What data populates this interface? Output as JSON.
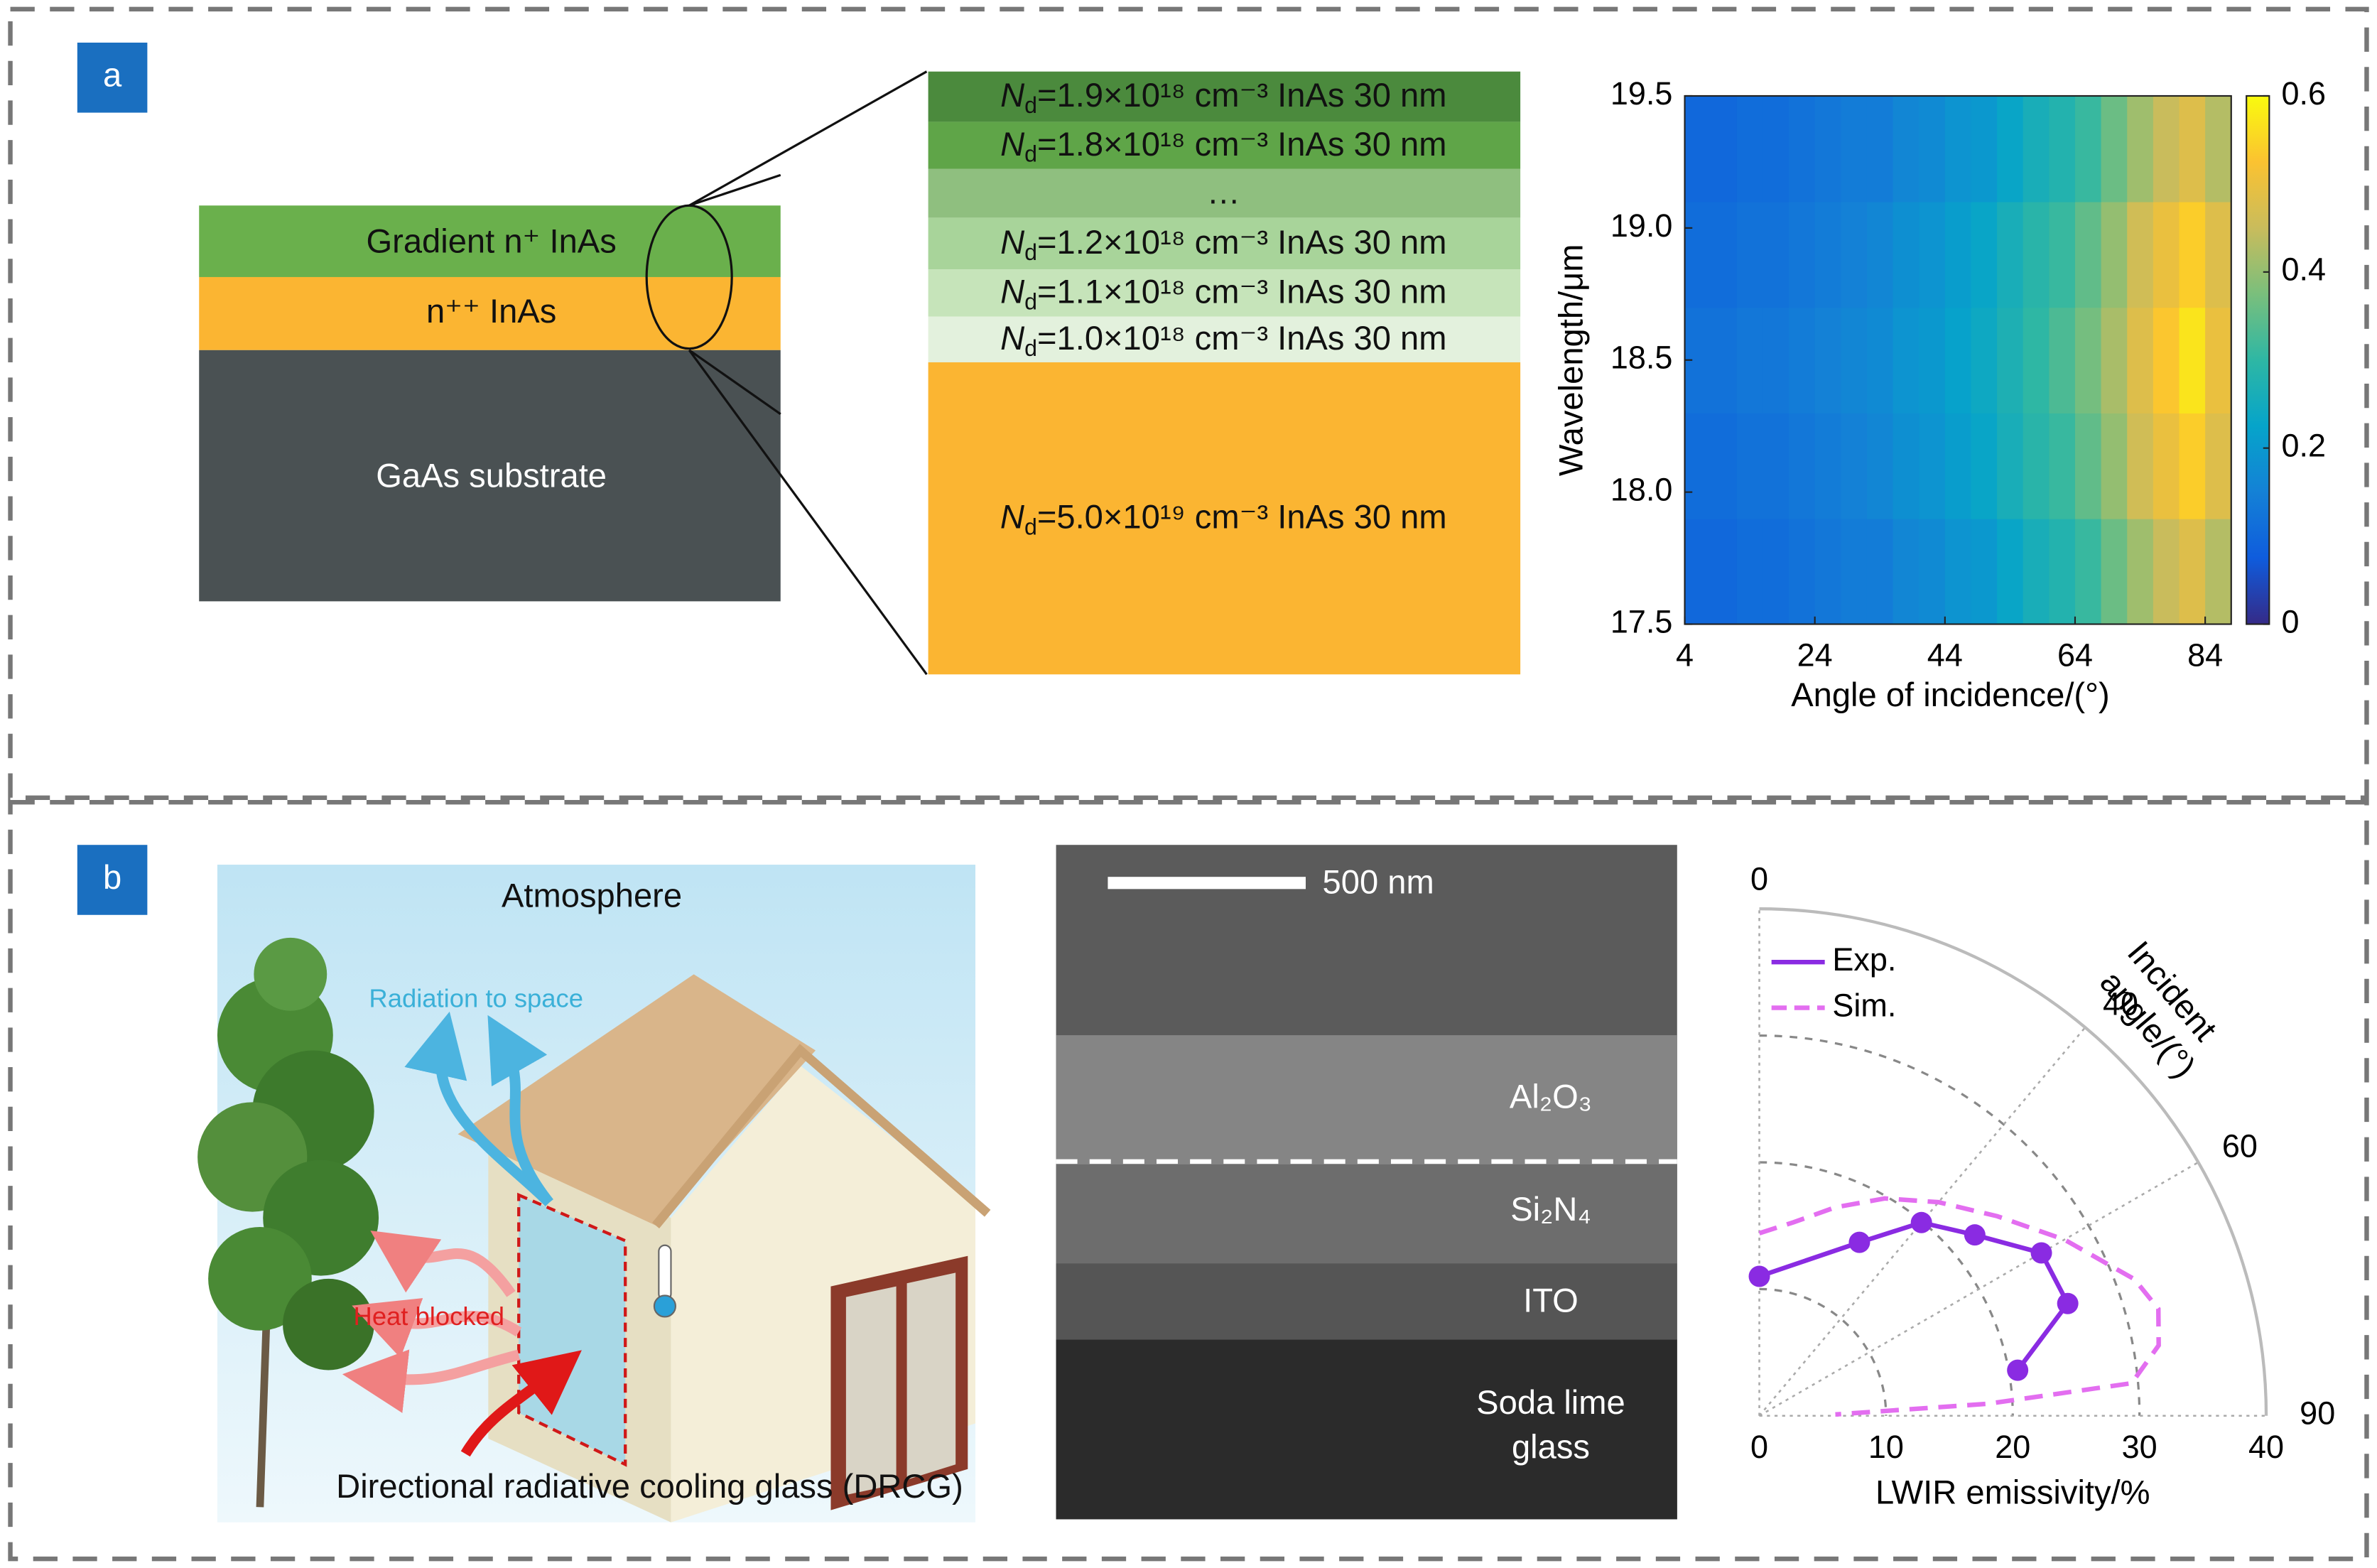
{
  "panel_a": {
    "label": "a",
    "structure": [
      "Gradient n⁺ InAs",
      "n⁺⁺ InAs",
      "GaAs substrate"
    ],
    "zoom_layers": [
      {
        "symbol": "N",
        "subscript": "d",
        "text": "=1.9×10¹⁸ cm⁻³ InAs 30 nm",
        "color": "#4b8a3d"
      },
      {
        "symbol": "N",
        "subscript": "d",
        "text": "=1.8×10¹⁸ cm⁻³ InAs 30 nm",
        "color": "#5fa548"
      },
      {
        "text": "…",
        "color": "#8fbf7f"
      },
      {
        "symbol": "N",
        "subscript": "d",
        "text": "=1.2×10¹⁸ cm⁻³ InAs 30 nm",
        "color": "#a8d49a"
      },
      {
        "symbol": "N",
        "subscript": "d",
        "text": "=1.1×10¹⁸ cm⁻³ InAs 30 nm",
        "color": "#c6e4ba"
      },
      {
        "symbol": "N",
        "subscript": "d",
        "text": "=1.0×10¹⁸ cm⁻³ InAs 30 nm",
        "color": "#e3f1dd"
      },
      {
        "symbol": "N",
        "subscript": "d",
        "text": "=5.0×10¹⁹ cm⁻³ InAs 30 nm",
        "color": "#fbb532"
      }
    ]
  },
  "panel_b": {
    "label": "b",
    "illustration": {
      "atmosphere": "Atmosphere",
      "radiation": "Radiation to space",
      "heat": "Heat blocked",
      "glass": "Directional radiative cooling glass (DRCG)"
    },
    "sem": {
      "scale_bar": "500 nm",
      "layers": [
        "Al₂O₃",
        "Si₂N₄",
        "ITO"
      ],
      "substrate": [
        "Soda lime",
        "glass"
      ]
    }
  },
  "chart_data": [
    {
      "type": "heatmap",
      "xlabel": "Angle of incidence/(°)",
      "ylabel": "Wavelength/μm",
      "x_bins": [
        4,
        8,
        12,
        16,
        20,
        24,
        28,
        32,
        36,
        40,
        44,
        48,
        52,
        56,
        60,
        64,
        68,
        72,
        76,
        80,
        84,
        88
      ],
      "y_bins": [
        17.5,
        17.9,
        18.3,
        18.7,
        19.1,
        19.5
      ],
      "values": [
        [
          0.1,
          0.1,
          0.11,
          0.11,
          0.12,
          0.13,
          0.14,
          0.14,
          0.16,
          0.17,
          0.19,
          0.2,
          0.23,
          0.26,
          0.28,
          0.31,
          0.36,
          0.41,
          0.45,
          0.48,
          0.43
        ],
        [
          0.11,
          0.11,
          0.12,
          0.12,
          0.13,
          0.14,
          0.15,
          0.16,
          0.18,
          0.19,
          0.21,
          0.23,
          0.26,
          0.29,
          0.31,
          0.35,
          0.4,
          0.46,
          0.5,
          0.54,
          0.48
        ],
        [
          0.12,
          0.12,
          0.13,
          0.13,
          0.14,
          0.15,
          0.16,
          0.17,
          0.19,
          0.2,
          0.22,
          0.24,
          0.27,
          0.3,
          0.33,
          0.37,
          0.42,
          0.48,
          0.53,
          0.57,
          0.5
        ],
        [
          0.11,
          0.11,
          0.12,
          0.12,
          0.13,
          0.14,
          0.15,
          0.16,
          0.18,
          0.19,
          0.21,
          0.23,
          0.26,
          0.29,
          0.31,
          0.35,
          0.4,
          0.46,
          0.5,
          0.54,
          0.48
        ],
        [
          0.1,
          0.1,
          0.11,
          0.11,
          0.12,
          0.13,
          0.14,
          0.14,
          0.16,
          0.17,
          0.19,
          0.2,
          0.23,
          0.26,
          0.28,
          0.31,
          0.36,
          0.41,
          0.45,
          0.48,
          0.43
        ]
      ],
      "xlim": [
        4,
        88
      ],
      "xticks": [
        4,
        24,
        44,
        64,
        84
      ],
      "ylim": [
        17.5,
        19.5
      ],
      "yticks": [
        17.5,
        {
          "value": 18,
          "label": "18.0"
        },
        18.5,
        {
          "value": 19,
          "label": "19.0"
        },
        19.5
      ],
      "clim": [
        0,
        0.6
      ],
      "cticks": [
        0,
        0.2,
        0.4,
        0.6
      ],
      "colormap": [
        "#352a87",
        "#0f5cdd",
        "#1481d6",
        "#06a4ca",
        "#2eb7a4",
        "#7abf7c",
        "#c9bc5c",
        "#fbc231",
        "#f9fb0e"
      ]
    },
    {
      "type": "polar",
      "rlabel": "LWIR emissivity/%",
      "theta_label": [
        "Incident",
        "angle/(°)"
      ],
      "thetalim": [
        0,
        90
      ],
      "thetaticks": [
        0,
        40,
        60,
        90
      ],
      "rlim": [
        0,
        40
      ],
      "rticks": [
        0,
        10,
        20,
        30,
        40
      ],
      "series": [
        {
          "name": "Exp.",
          "color": "#8a2be2",
          "style": "solid",
          "theta": [
            0,
            30,
            40,
            50,
            60,
            70,
            80
          ],
          "values": [
            11.0,
            15.8,
            19.9,
            22.2,
            25.7,
            25.9,
            20.7
          ]
        },
        {
          "name": "Sim.",
          "color": "#e36ef0",
          "style": "dashed",
          "theta": [
            0,
            10,
            20,
            30,
            40,
            50,
            60,
            70,
            75,
            80,
            85,
            87,
            89
          ],
          "values": [
            14.4,
            15.5,
            17.5,
            19.8,
            22.0,
            24.5,
            27.8,
            31.5,
            32.6,
            32.0,
            29.5,
            18.0,
            6.0
          ]
        }
      ]
    }
  ]
}
